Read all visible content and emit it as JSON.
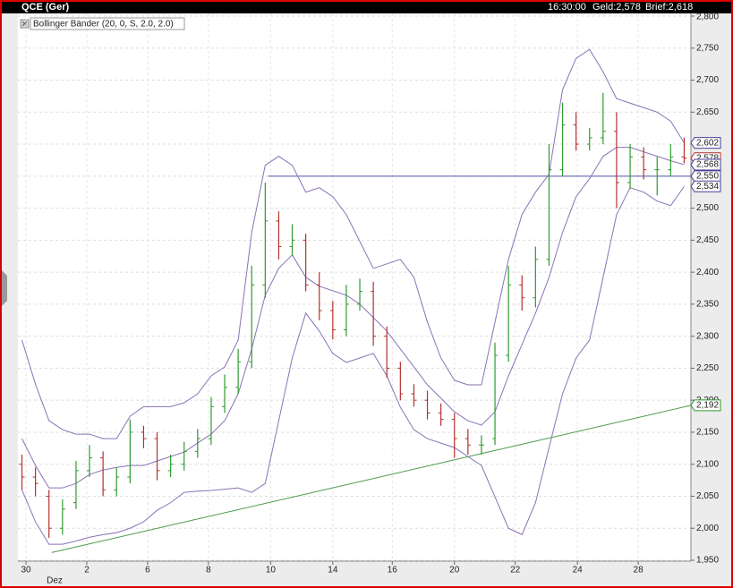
{
  "chart_data": {
    "type": "ohlc",
    "title": "QCE (Ger)",
    "info": [
      "16:30:00",
      "Geld:2,578",
      "Brief:2,618"
    ],
    "month_label": "Dez",
    "x": [
      0,
      1,
      2,
      3,
      4,
      5,
      6,
      7,
      8,
      9,
      10,
      11,
      12,
      13,
      14,
      15,
      16,
      17,
      18,
      19,
      20,
      21,
      22,
      23,
      24,
      25,
      26,
      27,
      28,
      29,
      30,
      31,
      32,
      33,
      34,
      35,
      36,
      37,
      38,
      39,
      40,
      41,
      42,
      43,
      44,
      45,
      46,
      47,
      48,
      49
    ],
    "open": [
      2100,
      2080,
      2050,
      2000,
      2040,
      2090,
      2110,
      2060,
      2080,
      2150,
      2140,
      2090,
      2100,
      2120,
      2140,
      2190,
      2220,
      2260,
      2380,
      2480,
      2440,
      2450,
      2380,
      2340,
      2310,
      2350,
      2370,
      2300,
      2250,
      2210,
      2200,
      2180,
      2170,
      2140,
      2130,
      2140,
      2270,
      2380,
      2360,
      2420,
      2560,
      2630,
      2600,
      2610,
      2620,
      2540,
      2580,
      2560,
      2560,
      2580
    ],
    "high": [
      2115,
      2095,
      2060,
      2045,
      2105,
      2130,
      2120,
      2095,
      2170,
      2160,
      2150,
      2115,
      2135,
      2155,
      2205,
      2240,
      2280,
      2410,
      2540,
      2495,
      2475,
      2460,
      2400,
      2355,
      2380,
      2390,
      2385,
      2315,
      2260,
      2225,
      2215,
      2195,
      2180,
      2155,
      2145,
      2290,
      2410,
      2395,
      2440,
      2600,
      2665,
      2650,
      2625,
      2680,
      2650,
      2600,
      2595,
      2580,
      2600,
      2610
    ],
    "low": [
      2060,
      2050,
      1985,
      1990,
      2030,
      2080,
      2050,
      2050,
      2070,
      2125,
      2075,
      2080,
      2090,
      2110,
      2130,
      2180,
      2210,
      2250,
      2360,
      2420,
      2425,
      2370,
      2325,
      2295,
      2300,
      2340,
      2285,
      2235,
      2200,
      2190,
      2170,
      2160,
      2110,
      2115,
      2115,
      2130,
      2260,
      2340,
      2345,
      2410,
      2550,
      2590,
      2590,
      2600,
      2500,
      2530,
      2545,
      2520,
      2550,
      2570
    ],
    "close": [
      2080,
      2070,
      2000,
      2030,
      2090,
      2110,
      2060,
      2080,
      2150,
      2140,
      2090,
      2100,
      2120,
      2140,
      2190,
      2220,
      2260,
      2380,
      2480,
      2440,
      2450,
      2380,
      2340,
      2310,
      2350,
      2370,
      2300,
      2250,
      2210,
      2200,
      2180,
      2170,
      2140,
      2130,
      2130,
      2270,
      2380,
      2360,
      2420,
      2560,
      2630,
      2600,
      2610,
      2620,
      2540,
      2580,
      2560,
      2560,
      2580,
      2578
    ],
    "up_color": "#2f9a2f",
    "down_color": "#b5302c",
    "indicator": {
      "name": "Bollinger Bänder (20, 0, S, 2.0, 2.0)",
      "color": "#8a72b6",
      "upper": [
        2294,
        2225,
        2168,
        2154,
        2147,
        2147,
        2140,
        2140,
        2175,
        2190,
        2190,
        2190,
        2196,
        2210,
        2238,
        2252,
        2294,
        2462,
        2567,
        2581,
        2567,
        2525,
        2532,
        2518,
        2490,
        2448,
        2406,
        2413,
        2420,
        2392,
        2322,
        2266,
        2231,
        2224,
        2224,
        2322,
        2420,
        2490,
        2525,
        2553,
        2685,
        2734,
        2748,
        2713,
        2671,
        2664,
        2657,
        2650,
        2636,
        2602
      ],
      "middle": [
        2140,
        2098,
        2063,
        2063,
        2070,
        2084,
        2091,
        2095,
        2098,
        2098,
        2105,
        2112,
        2119,
        2133,
        2147,
        2168,
        2210,
        2280,
        2364,
        2406,
        2427,
        2392,
        2378,
        2371,
        2364,
        2350,
        2329,
        2308,
        2280,
        2252,
        2224,
        2203,
        2182,
        2168,
        2161,
        2182,
        2238,
        2287,
        2336,
        2392,
        2462,
        2518,
        2546,
        2581,
        2595,
        2595,
        2588,
        2581,
        2574,
        2568
      ],
      "lower": [
        2060,
        2010,
        1975,
        1975,
        1980,
        1986,
        1990,
        1993,
        2000,
        2010,
        2028,
        2040,
        2056,
        2058,
        2059,
        2061,
        2063,
        2056,
        2070,
        2168,
        2266,
        2336,
        2308,
        2273,
        2259,
        2266,
        2273,
        2238,
        2189,
        2154,
        2140,
        2133,
        2126,
        2112,
        2098,
        2049,
        2000,
        1990,
        2040,
        2126,
        2210,
        2266,
        2294,
        2392,
        2490,
        2532,
        2525,
        2511,
        2504,
        2534
      ]
    },
    "trendlines": [
      {
        "x": [
          2.2,
          49.5
        ],
        "y": [
          1962,
          2192
        ],
        "color": "#4c9a4c"
      },
      {
        "x": [
          18.2,
          49.5
        ],
        "y": [
          2550,
          2550
        ],
        "color": "#5058a8"
      }
    ],
    "axis_markers": [
      {
        "value": 2602,
        "label": "2,602",
        "color": "#4a3c96"
      },
      {
        "value": 2578,
        "label": "2,578",
        "color": "#b5302c"
      },
      {
        "value": 2568,
        "label": "2,568",
        "color": "#4a3c96"
      },
      {
        "value": 2550,
        "label": "2,550",
        "color": "#4a3c96"
      },
      {
        "value": 2534,
        "label": "2,534",
        "color": "#4a3c96"
      },
      {
        "value": 2192,
        "label": "2,192",
        "color": "#2f9a2f"
      }
    ],
    "xlim": [
      -0.3,
      49.5
    ],
    "ylim": [
      1950,
      2800
    ],
    "xticks": [
      {
        "value": 0.3,
        "label": "30"
      },
      {
        "value": 4.8,
        "label": "2"
      },
      {
        "value": 9.3,
        "label": "6"
      },
      {
        "value": 13.8,
        "label": "8"
      },
      {
        "value": 18.4,
        "label": "10"
      },
      {
        "value": 23.0,
        "label": "14"
      },
      {
        "value": 27.4,
        "label": "16"
      },
      {
        "value": 32.0,
        "label": "20"
      },
      {
        "value": 36.5,
        "label": "22"
      },
      {
        "value": 41.1,
        "label": "24"
      },
      {
        "value": 45.6,
        "label": "28"
      }
    ],
    "yticks": [
      {
        "value": 1950,
        "label": "1,950"
      },
      {
        "value": 2000,
        "label": "2,000"
      },
      {
        "value": 2050,
        "label": "2,050"
      },
      {
        "value": 2100,
        "label": "2,100"
      },
      {
        "value": 2150,
        "label": "2,150"
      },
      {
        "value": 2200,
        "label": "2,200"
      },
      {
        "value": 2250,
        "label": "2,250"
      },
      {
        "value": 2300,
        "label": "2,300"
      },
      {
        "value": 2350,
        "label": "2,350"
      },
      {
        "value": 2400,
        "label": "2,400"
      },
      {
        "value": 2450,
        "label": "2,450"
      },
      {
        "value": 2500,
        "label": "2,500"
      },
      {
        "value": 2550,
        "label": "2,550"
      },
      {
        "value": 2600,
        "label": "2,600"
      },
      {
        "value": 2650,
        "label": "2,650"
      },
      {
        "value": 2700,
        "label": "2,700"
      },
      {
        "value": 2750,
        "label": "2,750"
      },
      {
        "value": 2800,
        "label": "2,800"
      }
    ],
    "grid": true
  }
}
